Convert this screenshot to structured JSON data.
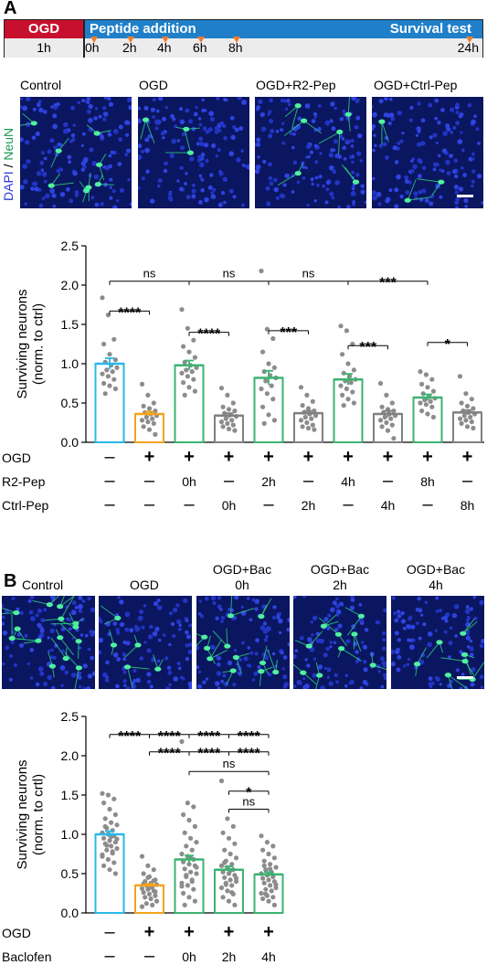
{
  "panelA": {
    "letter": "A",
    "timeline": {
      "ogd_label": "OGD",
      "ogd_duration": "1h",
      "peptide_label": "Peptide addition",
      "survival_label": "Survival test",
      "times": [
        "0h",
        "2h",
        "4h",
        "6h",
        "8h"
      ],
      "end_time": "24h"
    },
    "image_labels": [
      "Control",
      "OGD",
      "OGD+R2-Pep",
      "OGD+Ctrl-Pep"
    ],
    "stain_label_dapi": "DAPI",
    "stain_label_sep": " / ",
    "stain_label_neun": "NeuN"
  },
  "panelB": {
    "letter": "B",
    "image_labels": [
      "Control",
      "OGD",
      "OGD+Bac\n0h",
      "OGD+Bac\n2h",
      "OGD+Bac\n4h"
    ]
  },
  "colors": {
    "control": "#29b8e8",
    "ogd": "#f4a31c",
    "r2pep": "#3cb371",
    "ctrlpep": "#808080",
    "baclofen": "#3cb371",
    "timeline_red": "#c8102e",
    "timeline_blue": "#1f7fc8",
    "arrow_orange": "#f07c30",
    "dapi": "#2a3bd6",
    "neun": "#34e08a"
  },
  "chart_data": [
    {
      "type": "bar",
      "panel": "A",
      "ylabel": "Surviving neurons\n(norm. to ctrl)",
      "ylim": [
        0,
        2.5
      ],
      "yticks": [
        "0.0",
        "0.5",
        "1.0",
        "1.5",
        "2.0",
        "2.5"
      ],
      "categories": [
        "Control",
        "OGD",
        "OGD+R2-Pep 0h",
        "OGD+Ctrl-Pep 0h",
        "OGD+R2-Pep 2h",
        "OGD+Ctrl-Pep 2h",
        "OGD+R2-Pep 4h",
        "OGD+Ctrl-Pep 4h",
        "OGD+R2-Pep 8h",
        "OGD+Ctrl-Pep 8h"
      ],
      "values": [
        1.0,
        0.36,
        0.98,
        0.34,
        0.82,
        0.37,
        0.8,
        0.36,
        0.57,
        0.38
      ],
      "errors": [
        0.07,
        0.03,
        0.06,
        0.03,
        0.09,
        0.03,
        0.07,
        0.04,
        0.04,
        0.03
      ],
      "bar_color_keys": [
        "control",
        "ogd",
        "r2pep",
        "ctrlpep",
        "r2pep",
        "ctrlpep",
        "r2pep",
        "ctrlpep",
        "r2pep",
        "ctrlpep"
      ],
      "points": [
        [
          1.84,
          1.62,
          1.31,
          1.25,
          1.12,
          1.05,
          1.02,
          0.98,
          0.95,
          0.92,
          0.9,
          0.87,
          0.84,
          0.8,
          0.75,
          0.72,
          0.68,
          0.62
        ],
        [
          0.74,
          0.6,
          0.5,
          0.46,
          0.43,
          0.4,
          0.38,
          0.36,
          0.34,
          0.32,
          0.3,
          0.28,
          0.26,
          0.24,
          0.2,
          0.16,
          0.1
        ],
        [
          1.69,
          1.45,
          1.3,
          1.22,
          1.15,
          1.08,
          1.02,
          0.98,
          0.95,
          0.92,
          0.9,
          0.88,
          0.84,
          0.8,
          0.76,
          0.7,
          0.65,
          0.6
        ],
        [
          0.69,
          0.6,
          0.5,
          0.45,
          0.42,
          0.4,
          0.37,
          0.35,
          0.33,
          0.3,
          0.28,
          0.26,
          0.24,
          0.22,
          0.2,
          0.17,
          0.15
        ],
        [
          2.18,
          1.44,
          1.32,
          1.15,
          1.0,
          0.95,
          0.9,
          0.85,
          0.82,
          0.78,
          0.72,
          0.68,
          0.62,
          0.55,
          0.45,
          0.35,
          0.28,
          0.24
        ],
        [
          0.7,
          0.6,
          0.52,
          0.47,
          0.43,
          0.4,
          0.38,
          0.36,
          0.34,
          0.32,
          0.3,
          0.28,
          0.25,
          0.22,
          0.2,
          0.18,
          0.16
        ],
        [
          1.48,
          1.42,
          1.25,
          1.12,
          1.0,
          0.92,
          0.88,
          0.84,
          0.8,
          0.78,
          0.76,
          0.72,
          0.68,
          0.64,
          0.6,
          0.55,
          0.5,
          0.47
        ],
        [
          0.75,
          0.6,
          0.5,
          0.45,
          0.42,
          0.4,
          0.38,
          0.36,
          0.34,
          0.32,
          0.3,
          0.28,
          0.25,
          0.22,
          0.2,
          0.15,
          0.05
        ],
        [
          0.9,
          0.86,
          0.8,
          0.74,
          0.7,
          0.65,
          0.62,
          0.58,
          0.56,
          0.54,
          0.52,
          0.5,
          0.48,
          0.45,
          0.4,
          0.36,
          0.32
        ],
        [
          0.84,
          0.62,
          0.55,
          0.5,
          0.46,
          0.43,
          0.4,
          0.38,
          0.36,
          0.34,
          0.32,
          0.3,
          0.28,
          0.26,
          0.24,
          0.2,
          0.18
        ]
      ],
      "comparisons": [
        {
          "from": 0,
          "to": 1,
          "y": 1.67,
          "label": "****"
        },
        {
          "from": 2,
          "to": 3,
          "y": 1.4,
          "label": "****"
        },
        {
          "from": 4,
          "to": 5,
          "y": 1.42,
          "label": "***"
        },
        {
          "from": 6,
          "to": 7,
          "y": 1.23,
          "label": "***"
        },
        {
          "from": 8,
          "to": 9,
          "y": 1.27,
          "label": "*"
        },
        {
          "from": 0,
          "to": 2,
          "y": 2.05,
          "label": "ns"
        },
        {
          "from": 2,
          "to": 4,
          "y": 2.05,
          "label": "ns"
        },
        {
          "from": 4,
          "to": 6,
          "y": 2.05,
          "label": "ns"
        },
        {
          "from": 6,
          "to": 8,
          "y": 2.05,
          "label": "***"
        }
      ],
      "row_labels": [
        "OGD",
        "R2-Pep",
        "Ctrl-Pep"
      ],
      "rows": [
        [
          "–",
          "+",
          "+",
          "+",
          "+",
          "+",
          "+",
          "+",
          "+",
          "+"
        ],
        [
          "–",
          "–",
          "0h",
          "–",
          "2h",
          "–",
          "4h",
          "–",
          "8h",
          "–"
        ],
        [
          "–",
          "–",
          "–",
          "0h",
          "–",
          "2h",
          "–",
          "4h",
          "–",
          "8h"
        ]
      ]
    },
    {
      "type": "bar",
      "panel": "B",
      "ylabel": "Surviving neurons\n(norm. to crtl)",
      "ylim": [
        0,
        2.5
      ],
      "yticks": [
        "0.0",
        "0.5",
        "1.0",
        "1.5",
        "2.0",
        "2.5"
      ],
      "categories": [
        "Control",
        "OGD",
        "OGD+Bac 0h",
        "OGD+Bac 2h",
        "OGD+Bac 4h"
      ],
      "values": [
        1.0,
        0.35,
        0.68,
        0.55,
        0.49
      ],
      "errors": [
        0.04,
        0.02,
        0.05,
        0.04,
        0.03
      ],
      "bar_color_keys": [
        "control",
        "ogd",
        "baclofen",
        "baclofen",
        "baclofen"
      ],
      "points": [
        [
          1.52,
          1.5,
          1.45,
          1.4,
          1.32,
          1.25,
          1.2,
          1.15,
          1.12,
          1.08,
          1.05,
          1.02,
          1.0,
          0.98,
          0.95,
          0.92,
          0.9,
          0.88,
          0.85,
          0.82,
          0.8,
          0.76,
          0.72,
          0.68,
          0.64,
          0.6,
          0.55,
          0.5,
          1.1,
          0.97,
          0.94,
          0.86,
          0.78,
          0.74
        ],
        [
          0.72,
          0.6,
          0.55,
          0.5,
          0.46,
          0.42,
          0.4,
          0.38,
          0.36,
          0.35,
          0.33,
          0.31,
          0.3,
          0.28,
          0.26,
          0.24,
          0.22,
          0.2,
          0.18,
          0.15,
          0.12,
          0.1,
          0.08,
          0.45,
          0.41,
          0.37,
          0.32,
          0.27
        ],
        [
          2.18,
          1.4,
          1.35,
          1.25,
          1.18,
          1.1,
          1.02,
          0.95,
          0.9,
          0.85,
          0.8,
          0.75,
          0.72,
          0.68,
          0.65,
          0.62,
          0.6,
          0.56,
          0.52,
          0.5,
          0.46,
          0.42,
          0.38,
          0.35,
          0.3,
          0.25,
          0.2,
          0.15,
          0.1,
          0.7,
          0.58,
          0.48,
          0.4,
          0.34
        ],
        [
          1.68,
          1.2,
          1.1,
          1.02,
          0.95,
          0.88,
          0.8,
          0.75,
          0.7,
          0.66,
          0.62,
          0.6,
          0.58,
          0.55,
          0.52,
          0.5,
          0.48,
          0.45,
          0.42,
          0.4,
          0.38,
          0.35,
          0.32,
          0.28,
          0.24,
          0.2,
          0.15,
          0.1,
          0.64,
          0.54,
          0.44,
          0.36,
          0.26
        ],
        [
          0.98,
          0.9,
          0.85,
          0.8,
          0.75,
          0.7,
          0.66,
          0.62,
          0.58,
          0.55,
          0.52,
          0.5,
          0.48,
          0.46,
          0.44,
          0.42,
          0.4,
          0.38,
          0.35,
          0.32,
          0.3,
          0.28,
          0.25,
          0.22,
          0.2,
          0.18,
          0.15,
          0.1,
          0.6,
          0.56,
          0.36,
          0.24
        ]
      ],
      "comparisons": [
        {
          "from": 0,
          "to": 1,
          "y": 2.27,
          "label": "****"
        },
        {
          "from": 1,
          "to": 2,
          "y": 2.27,
          "label": "****"
        },
        {
          "from": 2,
          "to": 3,
          "y": 2.27,
          "label": "****"
        },
        {
          "from": 3,
          "to": 4,
          "y": 2.27,
          "label": "****"
        },
        {
          "from": 1,
          "to": 2,
          "y": 2.05,
          "label": "****"
        },
        {
          "from": 2,
          "to": 3,
          "y": 2.05,
          "label": "****"
        },
        {
          "from": 3,
          "to": 4,
          "y": 2.05,
          "label": "****"
        },
        {
          "from": 2,
          "to": 4,
          "y": 1.8,
          "label": "ns"
        },
        {
          "from": 3,
          "to": 4,
          "y": 1.55,
          "label": "*"
        },
        {
          "from": 3,
          "to": 4,
          "y": 1.32,
          "label": "ns"
        }
      ],
      "row_labels": [
        "OGD",
        "Baclofen"
      ],
      "rows": [
        [
          "–",
          "+",
          "+",
          "+",
          "+"
        ],
        [
          "–",
          "–",
          "0h",
          "2h",
          "4h"
        ]
      ]
    }
  ]
}
